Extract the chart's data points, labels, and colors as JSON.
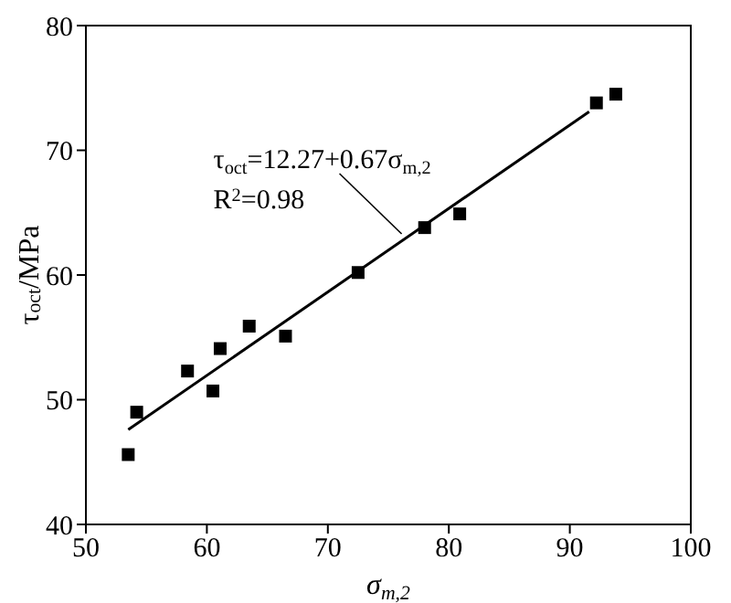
{
  "chart_data": {
    "type": "scatter",
    "xlabel": "σ$_{m,2}$",
    "ylabel": "τ$_{oct}$/MPa",
    "xlim": [
      50,
      100
    ],
    "xticks": [
      50,
      60,
      70,
      80,
      90,
      100
    ],
    "ylim": [
      40,
      80
    ],
    "yticks": [
      40,
      50,
      60,
      70,
      80
    ],
    "series": [
      {
        "color": "#000000",
        "marker": "square",
        "x": [
          53.5,
          54.2,
          58.4,
          60.5,
          61.1,
          63.5,
          66.5,
          72.5,
          78.0,
          80.9,
          92.2,
          93.8
        ],
        "values": [
          45.6,
          49.0,
          52.3,
          50.7,
          54.1,
          55.9,
          55.1,
          60.2,
          63.8,
          64.9,
          73.8,
          74.5
        ]
      },
      {
        "type": "line",
        "color": "#000000",
        "marker": "none",
        "x": [
          53.5,
          91.6
        ],
        "values": [
          47.6,
          73.1
        ]
      }
    ],
    "annotations": [
      {
        "text": "τ$_{oct}$=12.27+0.67σ$_{m,2}$",
        "x": 76.1,
        "y": 63.3
      },
      "R$^{2}$=0.98"
    ]
  }
}
